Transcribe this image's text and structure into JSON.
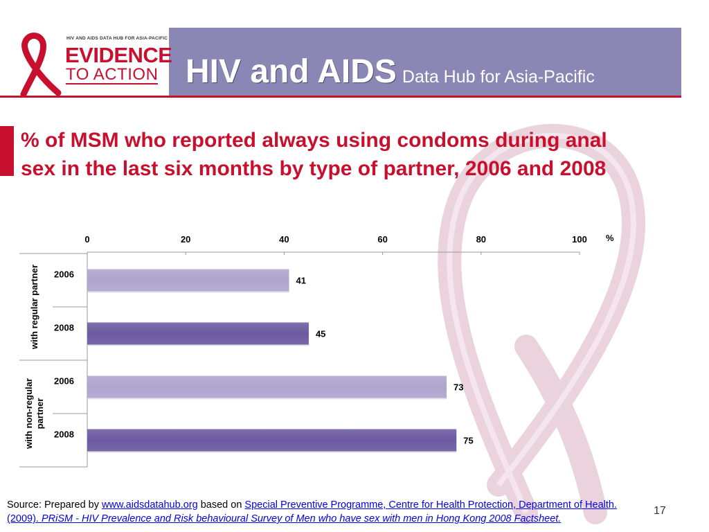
{
  "header": {
    "logo_tagline": "HIV AND AIDS DATA HUB FOR ASIA-PACIFIC",
    "logo_evidence": "EVIDENCE",
    "logo_action": "TO ACTION",
    "title_main": "HIV and AIDS",
    "title_sub": "Data Hub for Asia-Pacific"
  },
  "slide": {
    "title": "% of MSM who reported always using condoms during anal sex in the last six months by type of partner, 2006 and 2008",
    "page_number": "17"
  },
  "chart_data": {
    "type": "bar",
    "orientation": "horizontal",
    "x_ticks": [
      "0",
      "20",
      "40",
      "60",
      "80",
      "100"
    ],
    "x_unit": "%",
    "xlim": [
      0,
      100
    ],
    "groups": [
      {
        "label": "with regular partner",
        "bars": [
          {
            "year": "2006",
            "value": 41,
            "value_label": "41"
          },
          {
            "year": "2008",
            "value": 45,
            "value_label": "45"
          }
        ]
      },
      {
        "label": "with non-regular partner",
        "label_lines": [
          "with non-regular",
          "partner"
        ],
        "bars": [
          {
            "year": "2006",
            "value": 73,
            "value_label": "73"
          },
          {
            "year": "2008",
            "value": 75,
            "value_label": "75"
          }
        ]
      }
    ],
    "colors": {
      "2006": "#b1a5cf",
      "2008": "#6c5aa0"
    }
  },
  "footer": {
    "prefix": "Source: Prepared by ",
    "link1": "www.aidsdatahub.org",
    "middle": "  based on ",
    "link2": "Special Preventive Programme, Centre for Health Protection, Department of Health. (2009).",
    "link3": " PRiSM - HIV Prevalence and Risk behavioural Survey of Men who have sex with men in Hong Kong 2008 Factsheet."
  }
}
